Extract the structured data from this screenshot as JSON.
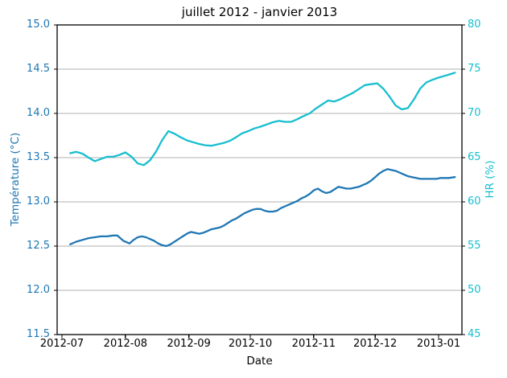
{
  "chart_data": {
    "type": "line",
    "title": "juillet 2012 - janvier 2013",
    "grid": true,
    "legend": null,
    "colors": {
      "temperature": "#1f77b4",
      "humidity": "#17becf",
      "gridline": "#b0b0b0",
      "spine": "#000000",
      "background": "#ffffff"
    },
    "axes": {
      "x": {
        "label": "Date",
        "ticks": [
          "2012-07",
          "2012-08",
          "2012-09",
          "2012-10",
          "2012-11",
          "2012-12",
          "2013-01"
        ],
        "tick_dates": [
          "2012-07-01",
          "2012-08-01",
          "2012-09-01",
          "2012-10-01",
          "2012-11-01",
          "2012-12-01",
          "2013-01-01"
        ]
      },
      "left": {
        "label": "Température (°C)",
        "color": "#1f77b4",
        "lim": [
          11.5,
          15.0
        ],
        "ticks": [
          "15.0",
          "14.5",
          "14.0",
          "13.5",
          "13.0",
          "12.5",
          "12.0",
          "11.5"
        ]
      },
      "right": {
        "label": "HR (%)",
        "color": "#17becf",
        "lim": [
          45,
          80
        ],
        "ticks": [
          "80",
          "75",
          "70",
          "65",
          "60",
          "55",
          "50",
          "45"
        ]
      }
    },
    "series": [
      {
        "name": "Température (°C)",
        "yaxis": "left",
        "color": "#1f77b4",
        "points": [
          [
            "2012-07-05",
            12.52
          ],
          [
            "2012-07-08",
            12.55
          ],
          [
            "2012-07-11",
            12.57
          ],
          [
            "2012-07-14",
            12.59
          ],
          [
            "2012-07-17",
            12.6
          ],
          [
            "2012-07-20",
            12.61
          ],
          [
            "2012-07-23",
            12.61
          ],
          [
            "2012-07-26",
            12.62
          ],
          [
            "2012-07-28",
            12.62
          ],
          [
            "2012-07-31",
            12.56
          ],
          [
            "2012-08-03",
            12.53
          ],
          [
            "2012-08-05",
            12.57
          ],
          [
            "2012-08-07",
            12.6
          ],
          [
            "2012-08-09",
            12.61
          ],
          [
            "2012-08-11",
            12.6
          ],
          [
            "2012-08-13",
            12.58
          ],
          [
            "2012-08-15",
            12.56
          ],
          [
            "2012-08-17",
            12.53
          ],
          [
            "2012-08-19",
            12.51
          ],
          [
            "2012-08-21",
            12.5
          ],
          [
            "2012-08-23",
            12.52
          ],
          [
            "2012-08-25",
            12.55
          ],
          [
            "2012-08-27",
            12.58
          ],
          [
            "2012-08-29",
            12.61
          ],
          [
            "2012-08-31",
            12.64
          ],
          [
            "2012-09-02",
            12.66
          ],
          [
            "2012-09-04",
            12.65
          ],
          [
            "2012-09-06",
            12.64
          ],
          [
            "2012-09-08",
            12.65
          ],
          [
            "2012-09-10",
            12.67
          ],
          [
            "2012-09-12",
            12.69
          ],
          [
            "2012-09-14",
            12.7
          ],
          [
            "2012-09-16",
            12.71
          ],
          [
            "2012-09-18",
            12.73
          ],
          [
            "2012-09-20",
            12.76
          ],
          [
            "2012-09-22",
            12.79
          ],
          [
            "2012-09-24",
            12.81
          ],
          [
            "2012-09-26",
            12.84
          ],
          [
            "2012-09-28",
            12.87
          ],
          [
            "2012-09-30",
            12.89
          ],
          [
            "2012-10-02",
            12.91
          ],
          [
            "2012-10-04",
            12.92
          ],
          [
            "2012-10-06",
            12.92
          ],
          [
            "2012-10-08",
            12.9
          ],
          [
            "2012-10-10",
            12.89
          ],
          [
            "2012-10-12",
            12.89
          ],
          [
            "2012-10-14",
            12.9
          ],
          [
            "2012-10-16",
            12.93
          ],
          [
            "2012-10-18",
            12.95
          ],
          [
            "2012-10-20",
            12.97
          ],
          [
            "2012-10-22",
            12.99
          ],
          [
            "2012-10-24",
            13.01
          ],
          [
            "2012-10-26",
            13.04
          ],
          [
            "2012-10-28",
            13.06
          ],
          [
            "2012-10-30",
            13.09
          ],
          [
            "2012-11-01",
            13.13
          ],
          [
            "2012-11-03",
            13.15
          ],
          [
            "2012-11-05",
            13.12
          ],
          [
            "2012-11-07",
            13.1
          ],
          [
            "2012-11-09",
            13.11
          ],
          [
            "2012-11-11",
            13.14
          ],
          [
            "2012-11-13",
            13.17
          ],
          [
            "2012-11-15",
            13.16
          ],
          [
            "2012-11-17",
            13.15
          ],
          [
            "2012-11-19",
            13.15
          ],
          [
            "2012-11-21",
            13.16
          ],
          [
            "2012-11-23",
            13.17
          ],
          [
            "2012-11-25",
            13.19
          ],
          [
            "2012-11-27",
            13.21
          ],
          [
            "2012-11-29",
            13.24
          ],
          [
            "2012-12-01",
            13.28
          ],
          [
            "2012-12-03",
            13.32
          ],
          [
            "2012-12-05",
            13.35
          ],
          [
            "2012-12-07",
            13.37
          ],
          [
            "2012-12-09",
            13.36
          ],
          [
            "2012-12-11",
            13.35
          ],
          [
            "2012-12-13",
            13.33
          ],
          [
            "2012-12-15",
            13.31
          ],
          [
            "2012-12-17",
            13.29
          ],
          [
            "2012-12-19",
            13.28
          ],
          [
            "2012-12-21",
            13.27
          ],
          [
            "2012-12-23",
            13.26
          ],
          [
            "2012-12-25",
            13.26
          ],
          [
            "2012-12-27",
            13.26
          ],
          [
            "2012-12-29",
            13.26
          ],
          [
            "2012-12-31",
            13.26
          ],
          [
            "2013-01-02",
            13.27
          ],
          [
            "2013-01-04",
            13.27
          ],
          [
            "2013-01-06",
            13.27
          ],
          [
            "2013-01-09",
            13.28
          ]
        ]
      },
      {
        "name": "HR (%)",
        "yaxis": "right",
        "color": "#17becf",
        "points": [
          [
            "2012-07-05",
            65.5
          ],
          [
            "2012-07-08",
            65.65
          ],
          [
            "2012-07-11",
            65.45
          ],
          [
            "2012-07-14",
            65.0
          ],
          [
            "2012-07-17",
            64.6
          ],
          [
            "2012-07-20",
            64.85
          ],
          [
            "2012-07-23",
            65.1
          ],
          [
            "2012-07-26",
            65.1
          ],
          [
            "2012-07-29",
            65.3
          ],
          [
            "2012-08-01",
            65.6
          ],
          [
            "2012-08-04",
            65.1
          ],
          [
            "2012-08-07",
            64.35
          ],
          [
            "2012-08-10",
            64.15
          ],
          [
            "2012-08-13",
            64.7
          ],
          [
            "2012-08-16",
            65.7
          ],
          [
            "2012-08-19",
            67.0
          ],
          [
            "2012-08-22",
            68.0
          ],
          [
            "2012-08-25",
            67.7
          ],
          [
            "2012-08-28",
            67.3
          ],
          [
            "2012-08-31",
            66.95
          ],
          [
            "2012-09-03",
            66.75
          ],
          [
            "2012-09-06",
            66.55
          ],
          [
            "2012-09-09",
            66.4
          ],
          [
            "2012-09-12",
            66.35
          ],
          [
            "2012-09-15",
            66.5
          ],
          [
            "2012-09-18",
            66.65
          ],
          [
            "2012-09-21",
            66.9
          ],
          [
            "2012-09-24",
            67.3
          ],
          [
            "2012-09-27",
            67.75
          ],
          [
            "2012-09-30",
            68.0
          ],
          [
            "2012-10-03",
            68.3
          ],
          [
            "2012-10-06",
            68.5
          ],
          [
            "2012-10-09",
            68.75
          ],
          [
            "2012-10-12",
            69.0
          ],
          [
            "2012-10-15",
            69.15
          ],
          [
            "2012-10-18",
            69.05
          ],
          [
            "2012-10-21",
            69.05
          ],
          [
            "2012-10-24",
            69.35
          ],
          [
            "2012-10-27",
            69.7
          ],
          [
            "2012-10-30",
            70.0
          ],
          [
            "2012-11-02",
            70.55
          ],
          [
            "2012-11-05",
            71.0
          ],
          [
            "2012-11-08",
            71.45
          ],
          [
            "2012-11-11",
            71.35
          ],
          [
            "2012-11-14",
            71.6
          ],
          [
            "2012-11-17",
            71.95
          ],
          [
            "2012-11-20",
            72.3
          ],
          [
            "2012-11-23",
            72.75
          ],
          [
            "2012-11-26",
            73.2
          ],
          [
            "2012-11-29",
            73.3
          ],
          [
            "2012-12-02",
            73.4
          ],
          [
            "2012-12-05",
            72.8
          ],
          [
            "2012-12-08",
            71.9
          ],
          [
            "2012-12-11",
            70.9
          ],
          [
            "2012-12-14",
            70.45
          ],
          [
            "2012-12-17",
            70.6
          ],
          [
            "2012-12-20",
            71.6
          ],
          [
            "2012-12-23",
            72.8
          ],
          [
            "2012-12-26",
            73.5
          ],
          [
            "2012-12-29",
            73.8
          ],
          [
            "2013-01-01",
            74.05
          ],
          [
            "2013-01-04",
            74.25
          ],
          [
            "2013-01-07",
            74.45
          ],
          [
            "2013-01-09",
            74.6
          ]
        ]
      }
    ]
  }
}
